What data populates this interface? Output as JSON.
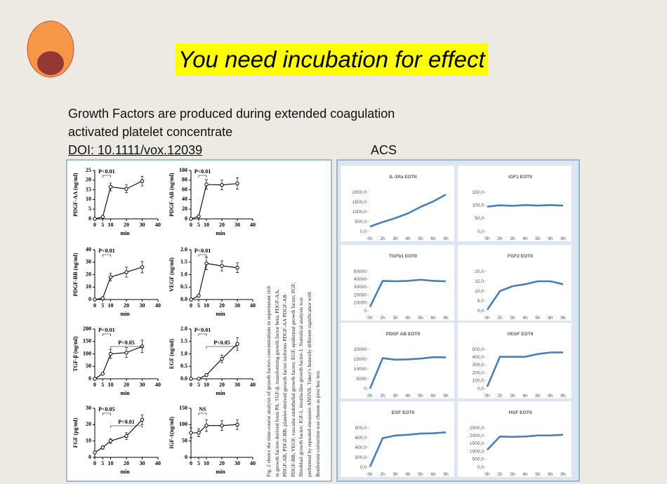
{
  "title": "You need incubation for effect",
  "body_lines": [
    "Growth Factors are produced during extended coagulation",
    "activated platelet concentrate"
  ],
  "doi": "DOI: 10.1111/vox.12039",
  "acs_label": "ACS",
  "left_figure": {
    "xlabel": "min",
    "x": [
      0,
      5,
      10,
      20,
      30
    ],
    "xlim": [
      0,
      40
    ],
    "xticks": [
      0,
      5,
      10,
      20,
      30,
      40
    ],
    "charts": [
      {
        "ylabel": "PDGF-AA (ng/ml)",
        "ylim": [
          0,
          25
        ],
        "yticks": [
          0,
          5,
          10,
          15,
          20,
          25
        ],
        "values": [
          0,
          1,
          16.5,
          15.5,
          19.5
        ],
        "errors": [
          0.3,
          0.5,
          2,
          2,
          2.5
        ],
        "annotations": [
          "P<0.01"
        ]
      },
      {
        "ylabel": "PDGF-AB (ng/ml)",
        "ylim": [
          0,
          100
        ],
        "yticks": [
          0,
          20,
          40,
          60,
          80,
          100
        ],
        "values": [
          0,
          5,
          71,
          70,
          73
        ],
        "errors": [
          1,
          2,
          10,
          10,
          12
        ],
        "annotations": [
          "P<0.01"
        ]
      },
      {
        "ylabel": "PDGF-BB (ng/ml)",
        "ylim": [
          0,
          40
        ],
        "yticks": [
          0,
          10,
          20,
          30,
          40
        ],
        "values": [
          0,
          1,
          18,
          22,
          26
        ],
        "errors": [
          0.3,
          0.5,
          3,
          4,
          4.5
        ],
        "annotations": [
          "P<0.01"
        ]
      },
      {
        "ylabel": "VEGF (ng/ml)",
        "ylim": [
          0,
          2
        ],
        "yticks": [
          {
            "value": 0,
            "label": "0.0"
          },
          0.5,
          {
            "value": 1,
            "label": "1.0"
          },
          1.5,
          {
            "value": 2,
            "label": "2.0"
          }
        ],
        "values": [
          0,
          0.15,
          1.45,
          1.35,
          1.28
        ],
        "errors": [
          0.02,
          0.03,
          0.25,
          0.2,
          0.2
        ],
        "annotations": [
          "P<0.01"
        ]
      },
      {
        "ylabel": "TGF-β (ng/ml)",
        "ylim": [
          0,
          200
        ],
        "yticks": [
          0,
          50,
          100,
          150,
          200
        ],
        "values": [
          0,
          20,
          100,
          105,
          130
        ],
        "errors": [
          2,
          4,
          18,
          20,
          25
        ],
        "annotations": [
          "P<0.01",
          "P<0.05"
        ]
      },
      {
        "ylabel": "EGF (ng/ml)",
        "ylim": [
          0,
          2
        ],
        "yticks": [
          {
            "value": 0,
            "label": "0.0"
          },
          0.5,
          {
            "value": 1,
            "label": "1.0"
          },
          1.5,
          {
            "value": 2,
            "label": "2.0"
          }
        ],
        "values": [
          0,
          0,
          0.15,
          0.8,
          1.4
        ],
        "errors": [
          0.01,
          0.01,
          0.05,
          0.15,
          0.25
        ],
        "annotations": [
          "P<0.01",
          "P<0.05"
        ]
      },
      {
        "ylabel": "FGF (pg/ml)",
        "ylim": [
          0,
          30
        ],
        "yticks": [
          0,
          10,
          20,
          30
        ],
        "values": [
          3,
          6,
          10,
          13,
          23
        ],
        "errors": [
          0.5,
          1,
          1.5,
          2,
          3
        ],
        "annotations": [
          "P<0.05",
          "P<0.01"
        ]
      },
      {
        "ylabel": "IGF-1(ng/ml)",
        "ylim": [
          0,
          150
        ],
        "yticks": [
          0,
          50,
          100,
          150
        ],
        "values": [
          75,
          75,
          97,
          97,
          100
        ],
        "errors": [
          15,
          12,
          18,
          15,
          15
        ],
        "annotations": [
          "NS"
        ]
      }
    ],
    "caption": "Fig. 2 shows the time-course analysis of growth factors concentrations in supernatant rich in growth factors derived from PA. TGF-β, transforming growth factor beta; PDGF-AA, PDGF-AB, PDGF-BB, platelet-derived growth factor isoforms PDGF-AA PDGF-AB PDGF-BB; VEGF, vascular endothelial growth factor; EGF, epidermal growth factor; FGF, fibroblast growth factor; IGF-1, insulin-like growth factor-1. Statistical analysis was performed by repeated-measures ANOVA. Tukey's honestly different significance with Bonferroni correction was chosen as post hoc test."
  },
  "right_figure": {
    "categories": [
      "0h",
      "2h",
      "3h",
      "4h",
      "5h",
      "6h",
      "9h"
    ],
    "color": "#4a7ebb",
    "charts": [
      {
        "title": "IL-1Ra EOTII",
        "ylim": [
          0,
          2000
        ],
        "yticks": [
          {
            "value": 0,
            "label": "0,0"
          },
          {
            "value": 500,
            "label": "500,0"
          },
          {
            "value": 1000,
            "label": "1000,0"
          },
          {
            "value": 1500,
            "label": "1500,0"
          },
          {
            "value": 2000,
            "label": "2000,0"
          }
        ],
        "values": [
          250,
          480,
          680,
          920,
          1250,
          1530,
          1880
        ]
      },
      {
        "title": "IGF1 EOTII",
        "ylim": [
          0,
          150
        ],
        "yticks": [
          {
            "value": 0,
            "label": "0,0"
          },
          {
            "value": 50,
            "label": "50,0"
          },
          {
            "value": 100,
            "label": "100,0"
          },
          {
            "value": 150,
            "label": "150,0"
          }
        ],
        "values": [
          95,
          100,
          98,
          101,
          99,
          101,
          99
        ]
      },
      {
        "title": "TGFb1 EOTII",
        "ylim": [
          0,
          50000
        ],
        "yticks": [
          0,
          10000,
          20000,
          30000,
          40000,
          50000
        ],
        "values": [
          5000,
          38000,
          37500,
          38000,
          39500,
          38000,
          37500
        ]
      },
      {
        "title": "FGF2 EOTII",
        "ylim": [
          0,
          20
        ],
        "yticks": [
          {
            "value": 0,
            "label": "0,0"
          },
          {
            "value": 5,
            "label": "5,0"
          },
          {
            "value": 10,
            "label": "10,0"
          },
          {
            "value": 15,
            "label": "15,0"
          },
          {
            "value": 20,
            "label": "20,0"
          }
        ],
        "values": [
          0.5,
          10,
          12.5,
          13.5,
          15,
          15,
          13.5
        ]
      },
      {
        "title": "PDGF AB EOTII",
        "ylim": [
          0,
          20000
        ],
        "yticks": [
          0,
          5000,
          10000,
          15000,
          20000
        ],
        "values": [
          0,
          15500,
          14700,
          14900,
          15300,
          16000,
          15900
        ]
      },
      {
        "title": "VEGF EOTII",
        "ylim": [
          0,
          500
        ],
        "yticks": [
          {
            "value": 0,
            "label": "0,0"
          },
          {
            "value": 100,
            "label": "100,0"
          },
          {
            "value": 200,
            "label": "200,0"
          },
          {
            "value": 300,
            "label": "300,0"
          },
          {
            "value": 400,
            "label": "400,0"
          },
          {
            "value": 500,
            "label": "500,0"
          }
        ],
        "values": [
          25,
          405,
          405,
          405,
          440,
          460,
          460
        ]
      },
      {
        "title": "EGF EOTII",
        "ylim": [
          0,
          800
        ],
        "yticks": [
          {
            "value": 0,
            "label": "0,0"
          },
          {
            "value": 200,
            "label": "200,0"
          },
          {
            "value": 400,
            "label": "400,0"
          },
          {
            "value": 600,
            "label": "600,0"
          },
          {
            "value": 800,
            "label": "800,0"
          }
        ],
        "values": [
          10,
          590,
          645,
          660,
          685,
          690,
          710
        ]
      },
      {
        "title": "HGF EOTII",
        "ylim": [
          0,
          2500
        ],
        "yticks": [
          {
            "value": 0,
            "label": "0,0"
          },
          {
            "value": 500,
            "label": "500,0"
          },
          {
            "value": 1000,
            "label": "1000,0"
          },
          {
            "value": 1500,
            "label": "1500,0"
          },
          {
            "value": 2000,
            "label": "2000,0"
          },
          {
            "value": 2500,
            "label": "2500,0"
          }
        ],
        "values": [
          1100,
          1950,
          1930,
          1950,
          2020,
          2020,
          2060
        ]
      }
    ]
  }
}
